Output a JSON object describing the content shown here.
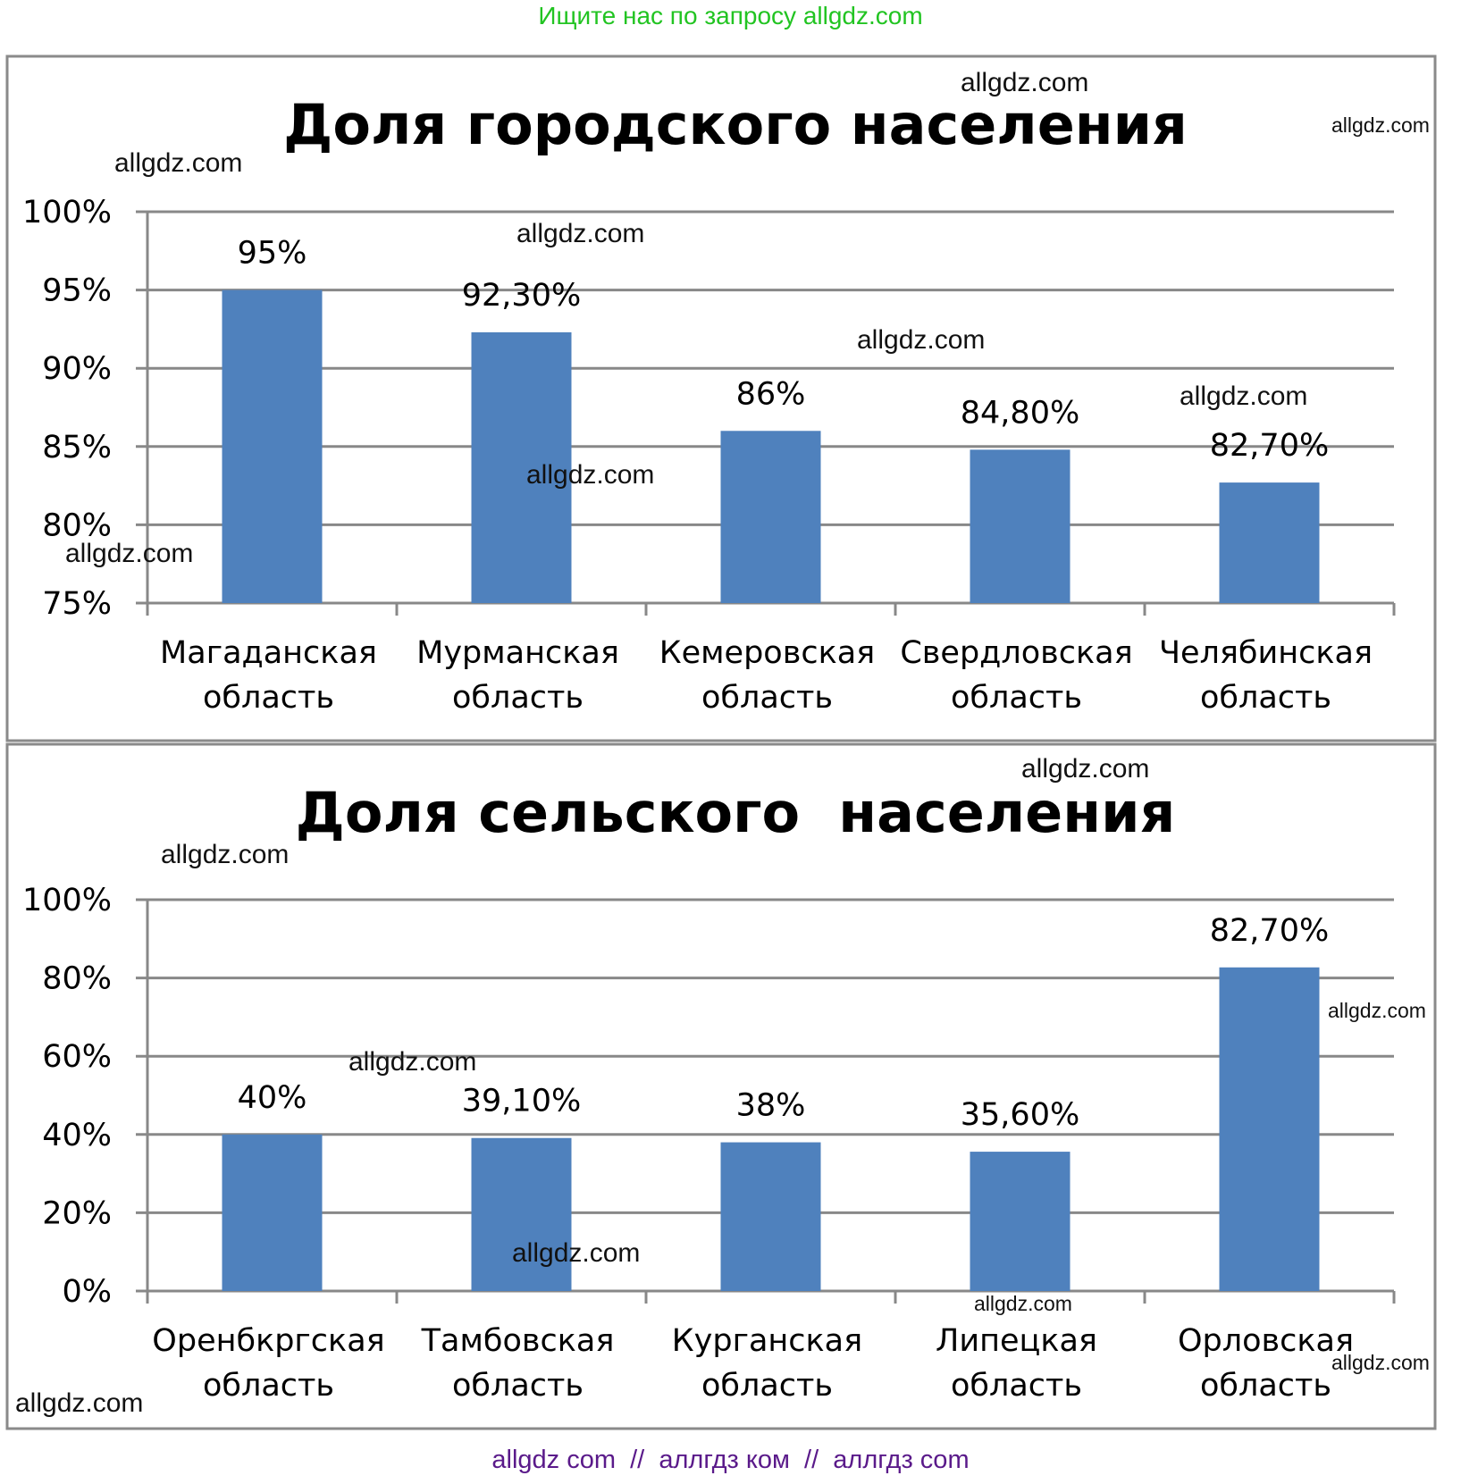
{
  "header": {
    "banner": "Ищите нас по запросу allgdz.com"
  },
  "footer": {
    "banner": "allgdz com  //  аллгдз ком  //  аллгдз com"
  },
  "watermark": "allgdz.com",
  "colors": {
    "bar": "#4f81bd",
    "grid": "#888888",
    "banner_top": "#22c422",
    "banner_bottom": "#5a1a8a"
  },
  "chart_data": [
    {
      "type": "bar",
      "title": "Доля городского населения",
      "categories": [
        [
          "Магаданская",
          "область"
        ],
        [
          "Мурманская",
          "область"
        ],
        [
          "Кемеровская",
          "область"
        ],
        [
          "Свердловская",
          "область"
        ],
        [
          "Челябинская",
          "область"
        ]
      ],
      "values": [
        95,
        92.3,
        86,
        84.8,
        82.7
      ],
      "data_labels": [
        "95%",
        "92,30%",
        "86%",
        "84,80%",
        "82,70%"
      ],
      "ylim": [
        75,
        100
      ],
      "yticks": [
        75,
        80,
        85,
        90,
        95,
        100
      ],
      "ytick_labels": [
        "75%",
        "80%",
        "85%",
        "90%",
        "95%",
        "100%"
      ],
      "grid": true,
      "legend": "none"
    },
    {
      "type": "bar",
      "title": "Доля сельского  населения",
      "categories": [
        [
          "Оренбкргская",
          "область"
        ],
        [
          "Тамбовская",
          "область"
        ],
        [
          "Курганская",
          "область"
        ],
        [
          "Липецкая",
          "область"
        ],
        [
          "Орловская",
          "область"
        ]
      ],
      "values": [
        40,
        39.1,
        38,
        35.6,
        82.7
      ],
      "data_labels": [
        "40%",
        "39,10%",
        "38%",
        "35,60%",
        "82,70%"
      ],
      "ylim": [
        0,
        100
      ],
      "yticks": [
        0,
        20,
        40,
        60,
        80,
        100
      ],
      "ytick_labels": [
        "0%",
        "20%",
        "40%",
        "60%",
        "80%",
        "100%"
      ],
      "grid": true,
      "legend": "none"
    }
  ]
}
